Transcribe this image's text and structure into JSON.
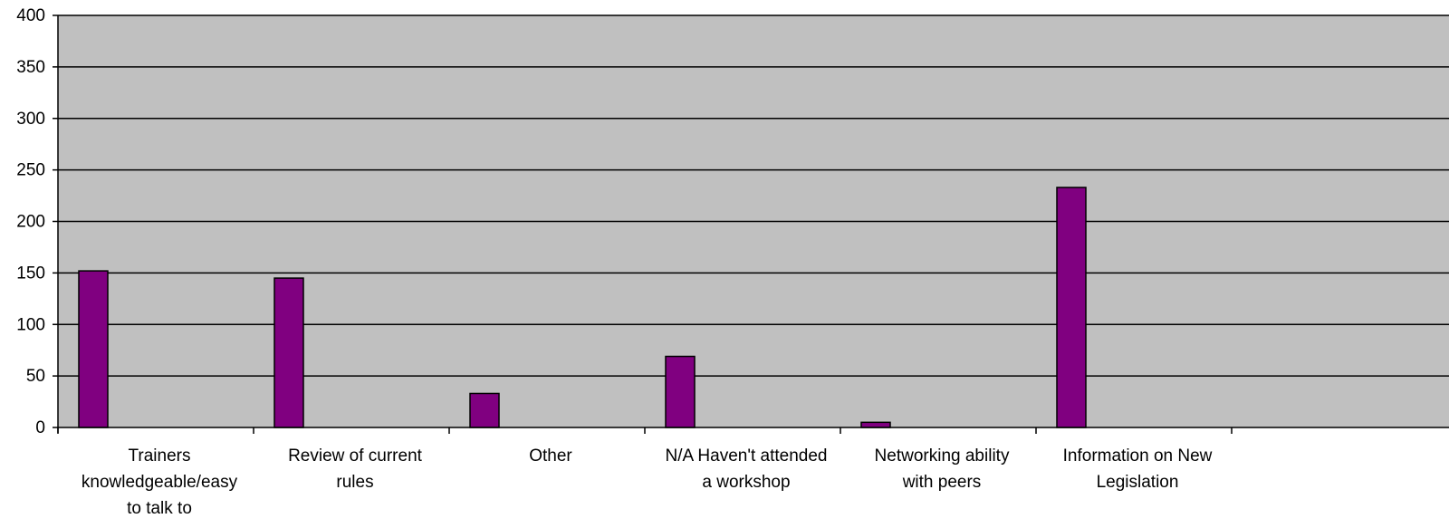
{
  "chart_data": {
    "type": "bar",
    "title": "",
    "xlabel": "",
    "ylabel": "",
    "ylim": [
      0,
      400
    ],
    "yticks": [
      0,
      50,
      100,
      150,
      200,
      250,
      300,
      350,
      400
    ],
    "grid": true,
    "legend": "none",
    "categories": [
      "Trainers knowledgeable/easy to talk to",
      "Review of current rules",
      "Other",
      "N/A Haven't attended a workshop",
      "Networking ability with peers",
      "Information on New Legislation",
      ""
    ],
    "category_lines": [
      [
        "Trainers",
        "knowledgeable/easy",
        "to talk to"
      ],
      [
        "Review of current",
        "rules"
      ],
      [
        "Other"
      ],
      [
        "N/A Haven't attended",
        "a workshop"
      ],
      [
        "Networking ability",
        "with peers"
      ],
      [
        "Information on New",
        "Legislation"
      ],
      []
    ],
    "values": [
      152,
      145,
      33,
      69,
      5,
      233,
      null
    ],
    "colors": {
      "bar": "#800080",
      "plot_background": "#c0c0c0",
      "grid": "#000000"
    }
  }
}
